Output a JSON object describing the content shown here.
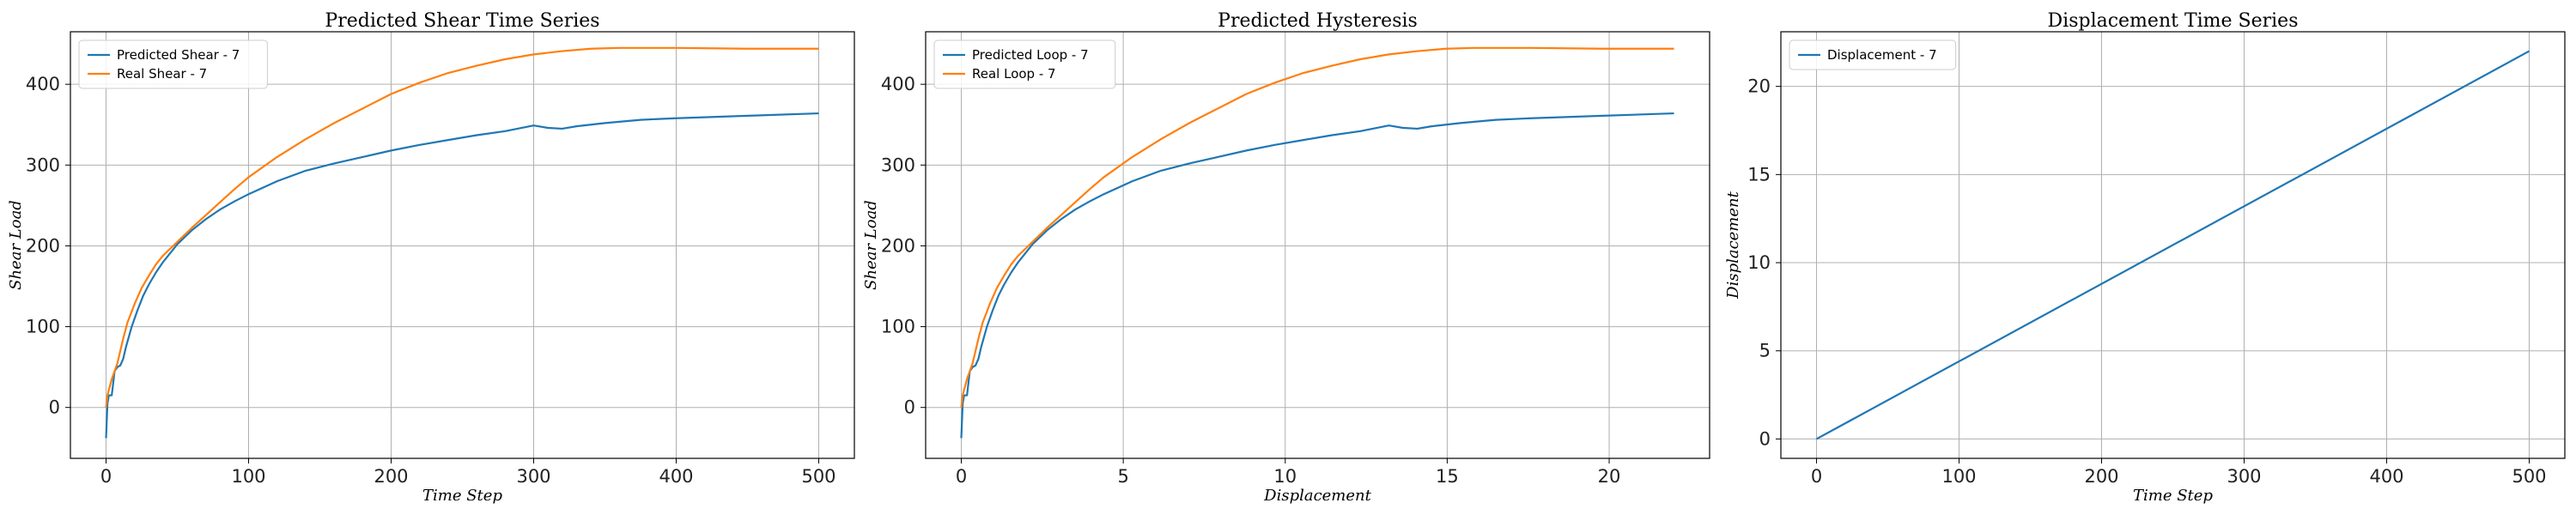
{
  "chart_data": [
    {
      "type": "line",
      "title": "Predicted Shear Time Series",
      "xlabel": "Time Step",
      "ylabel": "Shear Load",
      "xlim": [
        -25,
        525
      ],
      "ylim": [
        -63,
        465
      ],
      "xticks": [
        0,
        100,
        200,
        300,
        400,
        500
      ],
      "yticks": [
        0,
        100,
        200,
        300,
        400
      ],
      "grid": true,
      "legend_position": "top-left",
      "series": [
        {
          "name": "Predicted Shear - 7",
          "color": "#1f77b4",
          "x": [
            0,
            1,
            2,
            4,
            6,
            8,
            10,
            12,
            14,
            18,
            22,
            26,
            30,
            35,
            40,
            50,
            60,
            70,
            80,
            90,
            100,
            120,
            140,
            160,
            180,
            200,
            220,
            240,
            260,
            280,
            300,
            310,
            320,
            330,
            350,
            375,
            400,
            450,
            500
          ],
          "y": [
            -38,
            5,
            15,
            15,
            45,
            50,
            52,
            60,
            75,
            100,
            120,
            138,
            152,
            167,
            180,
            202,
            219,
            233,
            245,
            255,
            264,
            280,
            293,
            302,
            310,
            318,
            325,
            331,
            337,
            342,
            349,
            346,
            345,
            348,
            352,
            356,
            358,
            361,
            364
          ]
        },
        {
          "name": "Real Shear - 7",
          "color": "#ff7f0e",
          "x": [
            0,
            1,
            2,
            4,
            6,
            8,
            10,
            12,
            15,
            20,
            25,
            30,
            35,
            40,
            50,
            60,
            70,
            80,
            90,
            100,
            120,
            140,
            160,
            180,
            200,
            220,
            240,
            260,
            280,
            300,
            320,
            340,
            360,
            380,
            400,
            450,
            500
          ],
          "y": [
            0,
            15,
            22,
            35,
            45,
            55,
            70,
            85,
            105,
            128,
            148,
            163,
            177,
            188,
            205,
            222,
            238,
            254,
            270,
            285,
            310,
            332,
            352,
            370,
            388,
            402,
            414,
            423,
            431,
            437,
            441,
            444,
            445,
            445,
            445,
            444,
            444
          ]
        }
      ]
    },
    {
      "type": "line",
      "title": "Predicted Hysteresis",
      "xlabel": "Displacement",
      "ylabel": "Shear Load",
      "xlim": [
        -1.1,
        23.1
      ],
      "ylim": [
        -63,
        465
      ],
      "xticks": [
        0,
        5,
        10,
        15,
        20
      ],
      "yticks": [
        0,
        100,
        200,
        300,
        400
      ],
      "grid": true,
      "legend_position": "top-left",
      "series": [
        {
          "name": "Predicted Loop - 7",
          "color": "#1f77b4",
          "x": [
            0,
            0.044,
            0.088,
            0.176,
            0.264,
            0.352,
            0.44,
            0.528,
            0.616,
            0.792,
            0.968,
            1.144,
            1.32,
            1.54,
            1.76,
            2.2,
            2.64,
            3.08,
            3.52,
            3.96,
            4.4,
            5.28,
            6.16,
            7.04,
            7.92,
            8.8,
            9.68,
            10.56,
            11.44,
            12.32,
            13.2,
            13.64,
            14.08,
            14.52,
            15.4,
            16.5,
            17.6,
            19.8,
            22.0
          ],
          "y": [
            -38,
            5,
            15,
            15,
            45,
            50,
            52,
            60,
            75,
            100,
            120,
            138,
            152,
            167,
            180,
            202,
            219,
            233,
            245,
            255,
            264,
            280,
            293,
            302,
            310,
            318,
            325,
            331,
            337,
            342,
            349,
            346,
            345,
            348,
            352,
            356,
            358,
            361,
            364
          ]
        },
        {
          "name": "Real Loop - 7",
          "color": "#ff7f0e",
          "x": [
            0,
            0.044,
            0.088,
            0.176,
            0.264,
            0.352,
            0.44,
            0.528,
            0.66,
            0.88,
            1.1,
            1.32,
            1.54,
            1.76,
            2.2,
            2.64,
            3.08,
            3.52,
            3.96,
            4.4,
            5.28,
            6.16,
            7.04,
            7.92,
            8.8,
            9.68,
            10.56,
            11.44,
            12.32,
            13.2,
            14.08,
            14.96,
            15.84,
            16.72,
            17.6,
            19.8,
            22.0
          ],
          "y": [
            0,
            15,
            22,
            35,
            45,
            55,
            70,
            85,
            105,
            128,
            148,
            163,
            177,
            188,
            205,
            222,
            238,
            254,
            270,
            285,
            310,
            332,
            352,
            370,
            388,
            402,
            414,
            423,
            431,
            437,
            441,
            444,
            445,
            445,
            445,
            444,
            444
          ]
        }
      ]
    },
    {
      "type": "line",
      "title": "Displacement Time Series",
      "xlabel": "Time Step",
      "ylabel": "Displacement",
      "xlim": [
        -25,
        525
      ],
      "ylim": [
        -1.1,
        23.1
      ],
      "xticks": [
        0,
        100,
        200,
        300,
        400,
        500
      ],
      "yticks": [
        0,
        5,
        10,
        15,
        20
      ],
      "grid": true,
      "legend_position": "top-left",
      "series": [
        {
          "name": "Displacement - 7",
          "color": "#1f77b4",
          "x": [
            0,
            500
          ],
          "y": [
            0,
            22
          ]
        }
      ]
    }
  ]
}
